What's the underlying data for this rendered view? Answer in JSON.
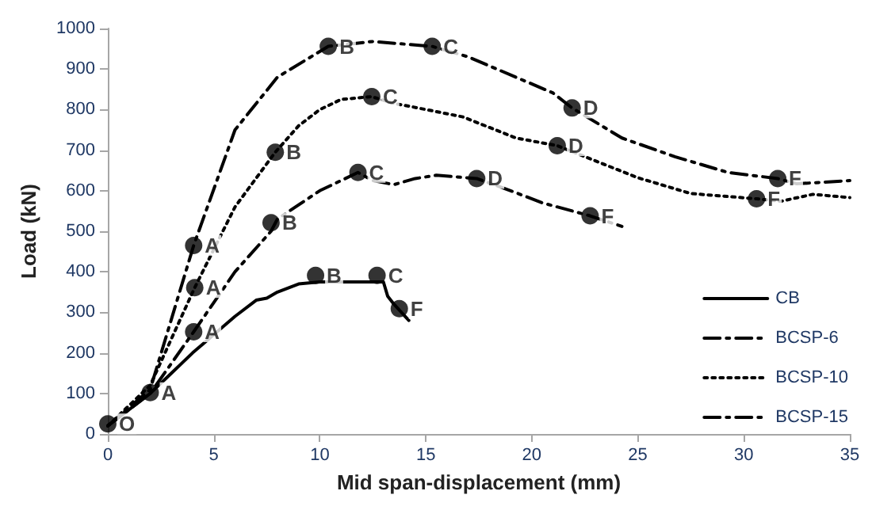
{
  "chart_data": {
    "type": "line",
    "xlabel": "Mid span-displacement (mm)",
    "ylabel": "Load (kN)",
    "xlim": [
      0,
      35
    ],
    "xticks": [
      0,
      5,
      10,
      15,
      20,
      25,
      30,
      35
    ],
    "ylim": [
      0,
      1000
    ],
    "yticks": [
      0,
      100,
      200,
      300,
      400,
      500,
      600,
      700,
      800,
      900,
      1000
    ],
    "grid": false,
    "legend": "bottom right",
    "marker": "none",
    "series": [
      {
        "name": "CB",
        "color": "#000000",
        "line_style": "solid",
        "x": [
          0,
          2,
          3,
          4,
          5,
          6,
          7,
          7.5,
          8,
          9,
          10,
          11,
          12,
          13,
          13.2,
          13.5,
          14.2
        ],
        "values": [
          20,
          100,
          150,
          200,
          245,
          290,
          330,
          335,
          350,
          370,
          375,
          375,
          375,
          375,
          340,
          320,
          280
        ]
      },
      {
        "name": "BCSP-6",
        "color": "#000000",
        "line_style": "dashed",
        "x": [
          0,
          2,
          4.05,
          6,
          7.7,
          8,
          10,
          11.8,
          12.5,
          13.5,
          14.5,
          15.5,
          17.4,
          19,
          20.5,
          22.75,
          24.25
        ],
        "values": [
          20,
          100,
          252,
          400,
          500,
          530,
          600,
          645,
          625,
          615,
          630,
          638,
          630,
          600,
          570,
          538,
          512
        ]
      },
      {
        "name": "BCSP-10",
        "color": "#000000",
        "line_style": "dotted",
        "x": [
          0,
          2,
          4.1,
          6,
          7.9,
          9,
          10,
          11,
          12.45,
          13.5,
          14.25,
          16.75,
          19.25,
          21.2,
          22.5,
          25,
          27.5,
          30.6,
          31.75,
          33.25,
          35
        ],
        "values": [
          20,
          120,
          361,
          560,
          695,
          760,
          800,
          825,
          832,
          815,
          808,
          782,
          730,
          711,
          684,
          632,
          593,
          580,
          574,
          591,
          583
        ]
      },
      {
        "name": "BCSP-15",
        "color": "#000000",
        "line_style": "dashed",
        "x": [
          0,
          2,
          4.05,
          6,
          8,
          10.4,
          12.5,
          15.3,
          17,
          19.25,
          21,
          21.9,
          24.25,
          26.75,
          29.25,
          31.6,
          32.5,
          35
        ],
        "values": [
          20,
          110,
          465,
          750,
          880,
          956,
          968,
          956,
          930,
          880,
          841,
          804,
          730,
          684,
          645,
          630,
          617,
          625
        ]
      },
      {
        "type": "scatter",
        "marker": "circle",
        "color": "#000000",
        "x": [
          0,
          2,
          9.8,
          12.7,
          13.75,
          4.05,
          7.7,
          11.8,
          17.4,
          22.75,
          4.1,
          7.9,
          12.45,
          21.2,
          30.6,
          4.05,
          10.4,
          15.3,
          21.9,
          31.6
        ],
        "values": [
          25,
          102,
          391,
          391,
          309,
          252,
          521,
          645,
          630,
          538,
          361,
          695,
          832,
          711,
          580,
          465,
          956,
          956,
          804,
          630
        ]
      }
    ],
    "annotations": [
      {
        "text": "O",
        "x": 0,
        "y": 25
      },
      {
        "text": "A",
        "x": 2,
        "y": 102
      },
      {
        "text": "B",
        "x": 9.8,
        "y": 391
      },
      {
        "text": "C",
        "x": 12.7,
        "y": 391
      },
      {
        "text": "F",
        "x": 13.75,
        "y": 309
      },
      {
        "text": "A",
        "x": 4.05,
        "y": 252
      },
      {
        "text": "B",
        "x": 7.7,
        "y": 521
      },
      {
        "text": "C",
        "x": 11.8,
        "y": 645
      },
      {
        "text": "D",
        "x": 17.4,
        "y": 630
      },
      {
        "text": "F",
        "x": 22.75,
        "y": 538
      },
      {
        "text": "A",
        "x": 4.1,
        "y": 361
      },
      {
        "text": "B",
        "x": 7.9,
        "y": 695
      },
      {
        "text": "C",
        "x": 12.45,
        "y": 832
      },
      {
        "text": "D",
        "x": 21.2,
        "y": 711
      },
      {
        "text": "F",
        "x": 30.6,
        "y": 580
      },
      {
        "text": "A",
        "x": 4.05,
        "y": 465
      },
      {
        "text": "B",
        "x": 10.4,
        "y": 956
      },
      {
        "text": "C",
        "x": 15.3,
        "y": 956
      },
      {
        "text": "D",
        "x": 21.9,
        "y": 804
      },
      {
        "text": "F",
        "x": 31.6,
        "y": 630
      }
    ]
  }
}
